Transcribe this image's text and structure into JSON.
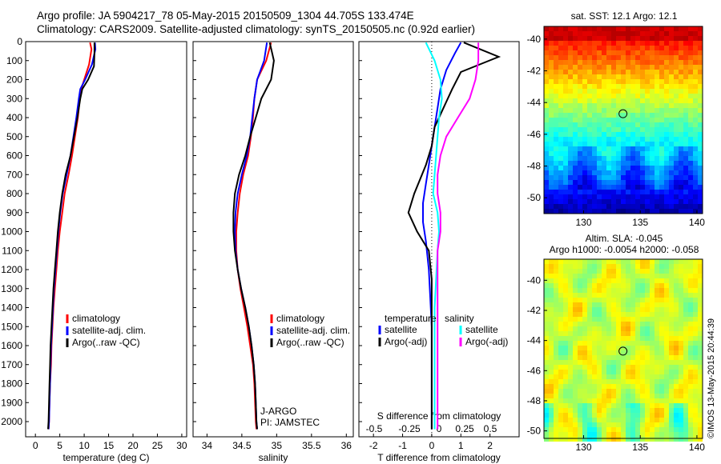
{
  "header": {
    "line1": "Argo profile: JA 5904217_78 05-May-2015 20150509_1304 44.705S 133.474E",
    "line2": "Climatology: CARS2009. Satellite-adjusted climatology: synTS_20150505.nc (0.92d earlier)"
  },
  "colors": {
    "climatology": "#ff0000",
    "satellite": "#0000ff",
    "argo": "#000000",
    "sal_sat": "#00ffff",
    "sal_argo": "#ff00ff"
  },
  "chart_data": [
    {
      "type": "line",
      "xlabel": "temperature (deg C)",
      "xticks": [
        0,
        5,
        10,
        15,
        20,
        25,
        30
      ],
      "xlim": [
        -2,
        31
      ],
      "ylim": [
        2080,
        0
      ],
      "yticks": [
        0,
        100,
        200,
        300,
        400,
        500,
        600,
        700,
        800,
        900,
        1000,
        1100,
        1200,
        1300,
        1400,
        1500,
        1600,
        1700,
        1800,
        1900,
        2000
      ],
      "legend": [
        "climatology",
        "satellite-adj. clim.",
        "Argo(..raw -QC)"
      ],
      "series": [
        {
          "name": "climatology",
          "color": "#ff0000",
          "x": [
            11.2,
            11.5,
            11.0,
            10.0,
            9.4,
            9.1,
            8.7,
            8.1,
            7.5,
            6.8,
            6.0,
            5.5,
            5.0,
            4.6,
            4.3,
            4.0,
            3.7,
            3.5,
            3.3,
            3.2,
            3.0,
            2.9,
            2.8,
            2.7
          ],
          "y": [
            5,
            40,
            120,
            200,
            250,
            300,
            400,
            500,
            600,
            700,
            800,
            900,
            1000,
            1100,
            1200,
            1300,
            1400,
            1500,
            1600,
            1700,
            1800,
            1900,
            2000,
            2040
          ]
        },
        {
          "name": "satellite-adj. clim.",
          "color": "#0000ff",
          "x": [
            12.2,
            12.3,
            11.6,
            10.2,
            9.2,
            8.9,
            8.4,
            7.8,
            7.2,
            6.4,
            5.6,
            5.1,
            4.7,
            4.4,
            4.1,
            3.8,
            3.6,
            3.4,
            3.2,
            3.1,
            3.0,
            2.9,
            2.8,
            2.7
          ],
          "y": [
            5,
            40,
            120,
            200,
            250,
            300,
            400,
            500,
            600,
            700,
            800,
            900,
            1000,
            1100,
            1200,
            1300,
            1400,
            1500,
            1600,
            1700,
            1800,
            1900,
            2000,
            2040
          ]
        },
        {
          "name": "Argo(..raw -QC)",
          "color": "#000000",
          "x": [
            12.1,
            12.1,
            12.0,
            10.8,
            9.6,
            9.2,
            8.6,
            7.9,
            7.2,
            6.2,
            5.5,
            5.0,
            4.6,
            4.3,
            4.0,
            3.7,
            3.5,
            3.3,
            3.1,
            3.0,
            2.9,
            2.8,
            2.7,
            2.6
          ],
          "y": [
            5,
            60,
            130,
            200,
            250,
            300,
            400,
            500,
            600,
            700,
            800,
            900,
            1000,
            1100,
            1200,
            1300,
            1400,
            1500,
            1600,
            1700,
            1800,
            1900,
            2000,
            2040
          ]
        }
      ]
    },
    {
      "type": "line",
      "xlabel": "salinity",
      "xticks": [
        34,
        34.5,
        35,
        35.5,
        36
      ],
      "xlim": [
        33.8,
        36.1
      ],
      "ylim": [
        2080,
        0
      ],
      "legend": [
        "climatology",
        "satellite-adj. clim.",
        "Argo(..raw -QC)"
      ],
      "annotations": [
        "J-ARGO",
        "PI: JAMSTEC"
      ],
      "series": [
        {
          "name": "climatology",
          "color": "#ff0000",
          "x": [
            34.92,
            34.85,
            34.72,
            34.68,
            34.66,
            34.63,
            34.59,
            34.52,
            34.47,
            34.44,
            34.42,
            34.42,
            34.44,
            34.48,
            34.53,
            34.58,
            34.62,
            34.66,
            34.68,
            34.69,
            34.7,
            34.71
          ],
          "y": [
            5,
            100,
            200,
            300,
            400,
            500,
            600,
            700,
            800,
            900,
            1000,
            1100,
            1200,
            1300,
            1400,
            1500,
            1600,
            1700,
            1800,
            1900,
            2000,
            2040
          ]
        },
        {
          "name": "satellite-adj. clim.",
          "color": "#0000ff",
          "x": [
            34.86,
            34.82,
            34.72,
            34.68,
            34.65,
            34.62,
            34.57,
            34.5,
            34.44,
            34.41,
            34.4,
            34.41,
            34.44,
            34.49,
            34.55,
            34.6,
            34.64,
            34.67,
            34.69,
            34.7,
            34.71,
            34.72
          ],
          "y": [
            5,
            100,
            200,
            300,
            400,
            500,
            600,
            700,
            800,
            900,
            1000,
            1100,
            1200,
            1300,
            1400,
            1500,
            1600,
            1700,
            1800,
            1900,
            2000,
            2040
          ]
        },
        {
          "name": "Argo(..raw -QC)",
          "color": "#000000",
          "x": [
            34.9,
            34.96,
            34.92,
            34.78,
            34.7,
            34.62,
            34.55,
            34.46,
            34.4,
            34.38,
            34.38,
            34.4,
            34.44,
            34.49,
            34.55,
            34.6,
            34.64,
            34.67,
            34.69,
            34.7,
            34.71,
            34.72
          ],
          "y": [
            5,
            100,
            200,
            300,
            400,
            500,
            600,
            700,
            800,
            900,
            1000,
            1100,
            1200,
            1300,
            1400,
            1500,
            1600,
            1700,
            1800,
            1900,
            2000,
            2040
          ]
        }
      ]
    },
    {
      "type": "line",
      "xlabel": "T difference from climatology",
      "xticks": [
        -2,
        -1,
        0,
        1,
        2
      ],
      "xlim": [
        -2.5,
        3
      ],
      "top_xlabel": "S difference from climatology",
      "top_xticks": [
        "-0.5",
        "-0.25",
        "0",
        "0.25",
        "0.5"
      ],
      "ylim": [
        2080,
        0
      ],
      "legend_temperature": [
        "temperature",
        "satellite",
        "Argo(-adj)"
      ],
      "legend_salinity": [
        "salinity",
        "satellite",
        "Argo(-adj)"
      ],
      "series": [
        {
          "name": "satellite",
          "color": "#0000ff",
          "x": [
            1.0,
            0.8,
            0.5,
            0.3,
            0.2,
            0.1,
            0.0,
            -0.1,
            -0.2,
            -0.3,
            -0.3,
            -0.2,
            -0.1,
            -0.05,
            0.0,
            0.0,
            0.0,
            0.0,
            0.0,
            0.0
          ],
          "y": [
            5,
            60,
            150,
            250,
            350,
            450,
            550,
            650,
            750,
            850,
            950,
            1050,
            1200,
            1350,
            1500,
            1600,
            1700,
            1800,
            1900,
            2040
          ]
        },
        {
          "name": "Argo(-adj)",
          "color": "#000000",
          "x": [
            1.1,
            2.3,
            1.0,
            0.7,
            0.4,
            0.1,
            0.0,
            -0.2,
            -0.6,
            -0.8,
            -0.5,
            -0.1,
            0.0,
            0.0,
            0.0,
            0.0,
            0.0,
            0.0,
            0.0
          ],
          "y": [
            5,
            80,
            160,
            250,
            350,
            450,
            550,
            650,
            800,
            900,
            1000,
            1100,
            1250,
            1400,
            1550,
            1700,
            1800,
            1900,
            2040
          ]
        },
        {
          "name": "satellite",
          "color": "#00ffff",
          "x": [
            -0.2,
            0.1,
            0.3,
            0.35,
            0.25,
            0.2,
            0.15,
            0.1,
            0.05,
            0.2,
            0.25,
            0.2,
            0.15,
            0.1,
            0.1,
            0.1,
            0.1,
            0.1,
            0.1
          ],
          "y": [
            5,
            100,
            200,
            300,
            400,
            500,
            600,
            700,
            800,
            900,
            1000,
            1100,
            1250,
            1400,
            1550,
            1700,
            1800,
            1900,
            2040
          ]
        },
        {
          "name": "Argo(-adj)",
          "color": "#ff00ff",
          "x": [
            1.6,
            1.6,
            1.5,
            1.3,
            0.9,
            0.5,
            0.3,
            0.2,
            0.2,
            0.3,
            0.3,
            0.2,
            0.2,
            0.2,
            0.2,
            0.2,
            0.2,
            0.2,
            0.2
          ],
          "y": [
            5,
            100,
            200,
            300,
            400,
            500,
            600,
            700,
            800,
            900,
            1000,
            1100,
            1250,
            1400,
            1550,
            1700,
            1800,
            1900,
            2040
          ]
        }
      ]
    },
    {
      "type": "heatmap",
      "title": "sat. SST: 12.1  Argo: 12.1",
      "xticks": [
        130,
        135,
        140
      ],
      "yticks": [
        -40,
        -42,
        -44,
        -46,
        -48,
        -50
      ],
      "xlim": [
        126.5,
        140.5
      ],
      "ylim": [
        -51,
        -39.2
      ],
      "marker": {
        "lon": 133.474,
        "lat": -44.705
      }
    },
    {
      "type": "heatmap",
      "title_line1": "Altim. SLA: -0.045",
      "title_line2": "Argo h1000: -0.0054  h2000: -0.058",
      "xticks": [
        130,
        135,
        140
      ],
      "yticks": [
        -40,
        -42,
        -44,
        -46,
        -48,
        -50
      ],
      "xlim": [
        126.5,
        140.5
      ],
      "ylim": [
        -50.5,
        -38.6
      ],
      "marker": {
        "lon": 133.474,
        "lat": -44.705
      }
    }
  ],
  "watermark": "©IMOS 13-May-2015 20:44:39"
}
